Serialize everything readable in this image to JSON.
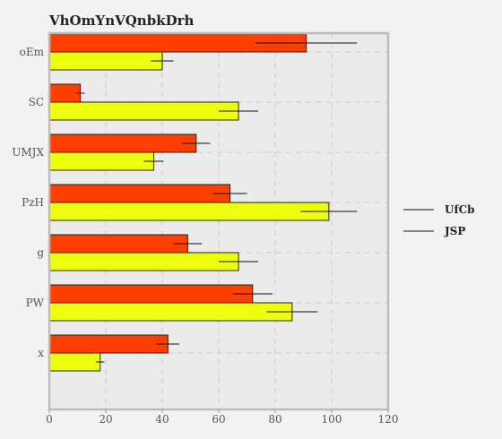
{
  "chart_data": {
    "type": "bar",
    "orientation": "horizontal",
    "title": "VhOmYnVQnbkDrh",
    "xlabel": "",
    "ylabel": "",
    "categories": [
      "oEm",
      "SC",
      "UMJX",
      "PzH",
      "g",
      "PW",
      "x"
    ],
    "series": [
      {
        "name": "UfCb",
        "color": "#ff3f00",
        "values": [
          91,
          11,
          52,
          64,
          49,
          72,
          42
        ],
        "errors": [
          18,
          1.5,
          5,
          6,
          5,
          7,
          4
        ]
      },
      {
        "name": "JSP",
        "color": "#eeff0e",
        "values": [
          40,
          67,
          37,
          99,
          67,
          86,
          18
        ],
        "errors": [
          4,
          7,
          3.5,
          10,
          7,
          9,
          1.5
        ]
      }
    ],
    "xlim": [
      0,
      120
    ],
    "xticks": [
      0,
      20,
      40,
      60,
      80,
      100,
      120
    ],
    "grid": true,
    "legend_position": "right"
  }
}
